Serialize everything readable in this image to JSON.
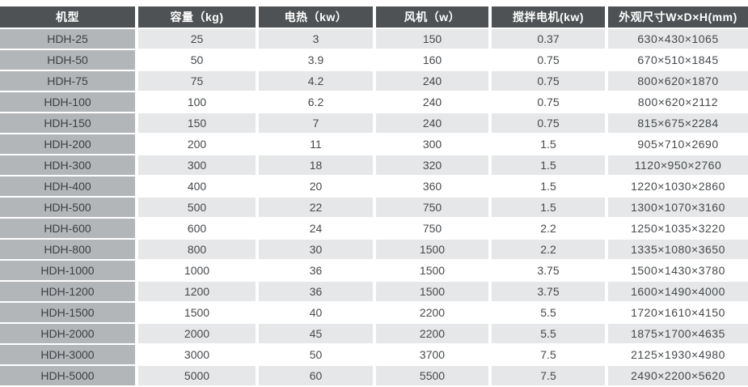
{
  "colors": {
    "header_bg": "#4e5254",
    "header_text": "#ffffff",
    "model_col_bg": "#b3b6b9",
    "model_text": "#3c4043",
    "row_alt_bg": "#e5e7e8",
    "row_bg": "#ffffff",
    "cell_text": "#46494c"
  },
  "table": {
    "columns": [
      "机型",
      "容量（kg)",
      "电热（kw）",
      "风机（w）",
      "搅拌电机(kw)",
      "外观尺寸W×D×H(mm)"
    ],
    "rows": [
      [
        "HDH-25",
        "25",
        "3",
        "150",
        "0.37",
        "630×430×1065"
      ],
      [
        "HDH-50",
        "50",
        "3.9",
        "160",
        "0.75",
        "670×510×1845"
      ],
      [
        "HDH-75",
        "75",
        "4.2",
        "240",
        "0.75",
        "800×620×1870"
      ],
      [
        "HDH-100",
        "100",
        "6.2",
        "240",
        "0.75",
        "800×620×2112"
      ],
      [
        "HDH-150",
        "150",
        "7",
        "240",
        "0.75",
        "815×675×2284"
      ],
      [
        "HDH-200",
        "200",
        "11",
        "300",
        "1.5",
        "905×710×2690"
      ],
      [
        "HDH-300",
        "300",
        "18",
        "320",
        "1.5",
        "1120×950×2760"
      ],
      [
        "HDH-400",
        "400",
        "20",
        "360",
        "1.5",
        "1220×1030×2860"
      ],
      [
        "HDH-500",
        "500",
        "22",
        "750",
        "1.5",
        "1300×1070×3160"
      ],
      [
        "HDH-600",
        "600",
        "24",
        "750",
        "2.2",
        "1250×1035×3220"
      ],
      [
        "HDH-800",
        "800",
        "30",
        "1500",
        "2.2",
        "1335×1080×3650"
      ],
      [
        "HDH-1000",
        "1000",
        "36",
        "1500",
        "3.75",
        "1500×1430×3780"
      ],
      [
        "HDH-1200",
        "1200",
        "36",
        "1500",
        "3.75",
        "1600×1490×4000"
      ],
      [
        "HDH-1500",
        "1500",
        "40",
        "2200",
        "5.5",
        "1720×1610×4150"
      ],
      [
        "HDH-2000",
        "2000",
        "45",
        "2200",
        "5.5",
        "1875×1700×4635"
      ],
      [
        "HDH-3000",
        "3000",
        "50",
        "3700",
        "7.5",
        "2125×1930×4980"
      ],
      [
        "HDH-5000",
        "5000",
        "60",
        "5500",
        "7.5",
        "2490×2200×5620"
      ]
    ]
  }
}
